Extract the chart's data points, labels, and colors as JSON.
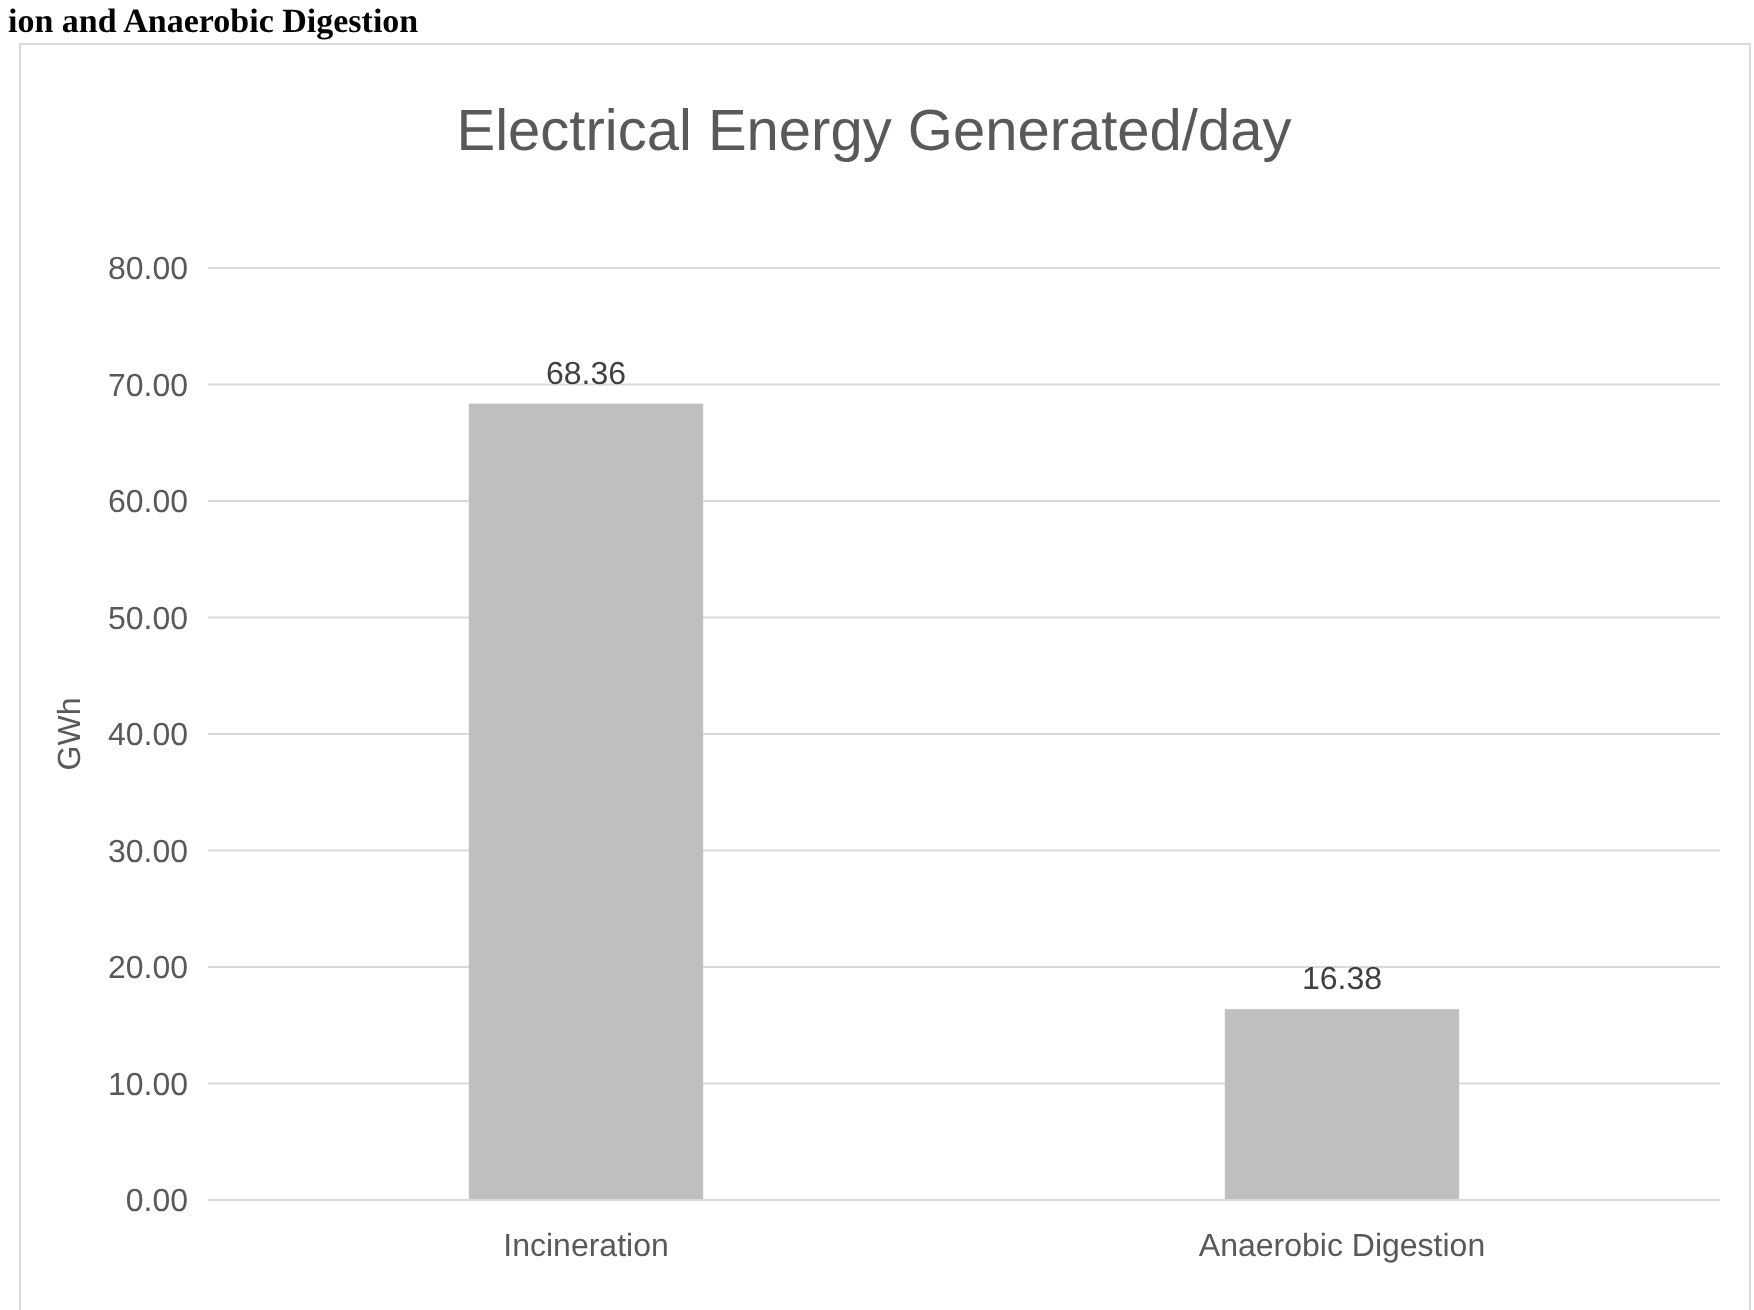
{
  "chart_data": {
    "type": "bar",
    "title": "Electrical Energy Generated/day",
    "ylabel": "GWh",
    "annotations": [
      "ion and Anaerobic Digestion"
    ],
    "categories": [
      "Incineration",
      "Anaerobic Digestion"
    ],
    "values": [
      68.36,
      16.38
    ],
    "color": "#bfbfbf",
    "ylim": [
      0,
      80
    ],
    "yticks": [
      {
        "value": 0,
        "label": "0.00"
      },
      {
        "value": 10,
        "label": "10.00"
      },
      {
        "value": 20,
        "label": "20.00"
      },
      {
        "value": 30,
        "label": "30.00"
      },
      {
        "value": 40,
        "label": "40.00"
      },
      {
        "value": 50,
        "label": "50.00"
      },
      {
        "value": 60,
        "label": "60.00"
      },
      {
        "value": 70,
        "label": "70.00"
      },
      {
        "value": 80,
        "label": "80.00"
      }
    ],
    "grid": "y",
    "data_labels": true
  }
}
